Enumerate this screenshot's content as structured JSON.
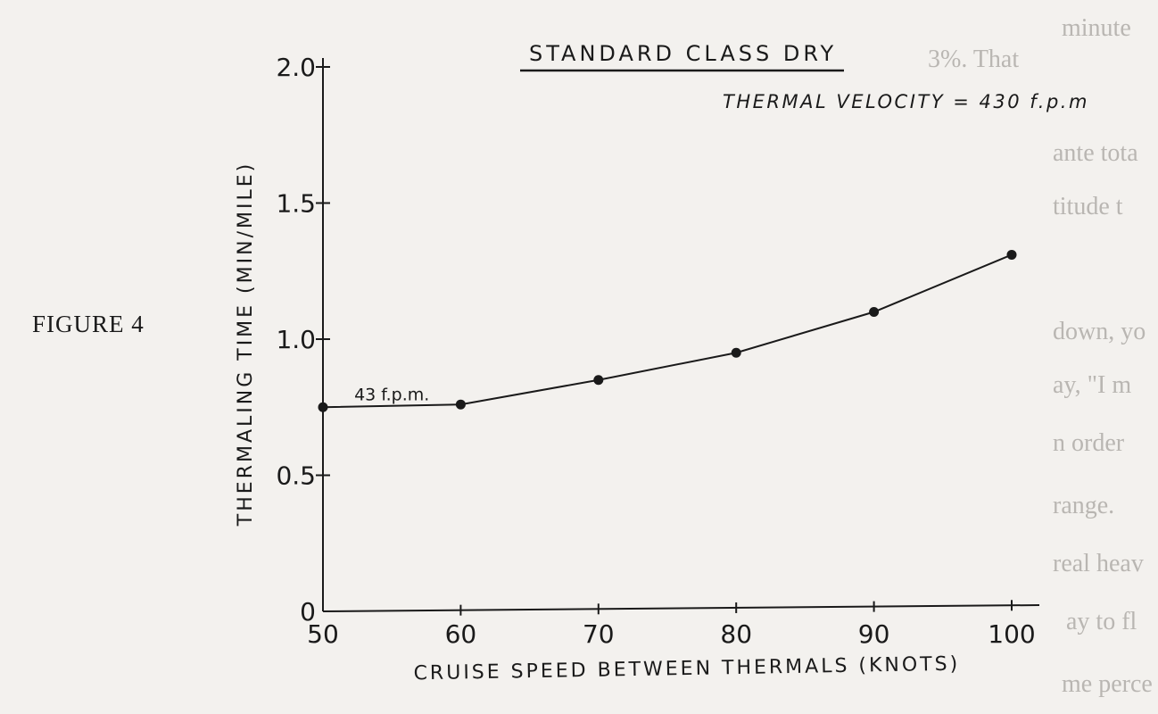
{
  "figure_label": "FIGURE 4",
  "colors": {
    "paper": "#f3f1ee",
    "ink": "#1a1a1a",
    "bleed": "#b9b6b2"
  },
  "bleed_through_fragments": [
    "minute",
    "3%. That",
    "ante tota",
    "titude t",
    "down, yo",
    "ay, \"I m",
    "n order",
    "range.",
    "real heav",
    "ay to fl",
    "me perce"
  ],
  "chart_data": {
    "type": "line",
    "title": "STANDARD CLASS DRY",
    "subtitle": "THERMAL VELOCITY = 430 f.p.m",
    "xlabel": "CRUISE SPEED BETWEEN THERMALS (KNOTS)",
    "ylabel": "THERMALING TIME (MIN/MILE)",
    "xlim": [
      50,
      100
    ],
    "ylim": [
      0,
      2.0
    ],
    "x_ticks": [
      50,
      60,
      70,
      80,
      90,
      100
    ],
    "x_tick_labels": [
      "50",
      "60",
      "70",
      "80",
      "90",
      "100"
    ],
    "y_ticks": [
      0,
      0.5,
      1.0,
      1.5,
      2.0
    ],
    "y_tick_labels": [
      "0",
      "0.5",
      "1.0",
      "1.5",
      "2.0"
    ],
    "grid": false,
    "series": [
      {
        "x": [
          50,
          60,
          70,
          80,
          90,
          100
        ],
        "y": [
          0.75,
          0.76,
          0.85,
          0.95,
          1.1,
          1.31
        ]
      }
    ],
    "annotations": [
      {
        "text": "43 f.p.m.",
        "x": 55,
        "y": 0.75
      }
    ]
  }
}
